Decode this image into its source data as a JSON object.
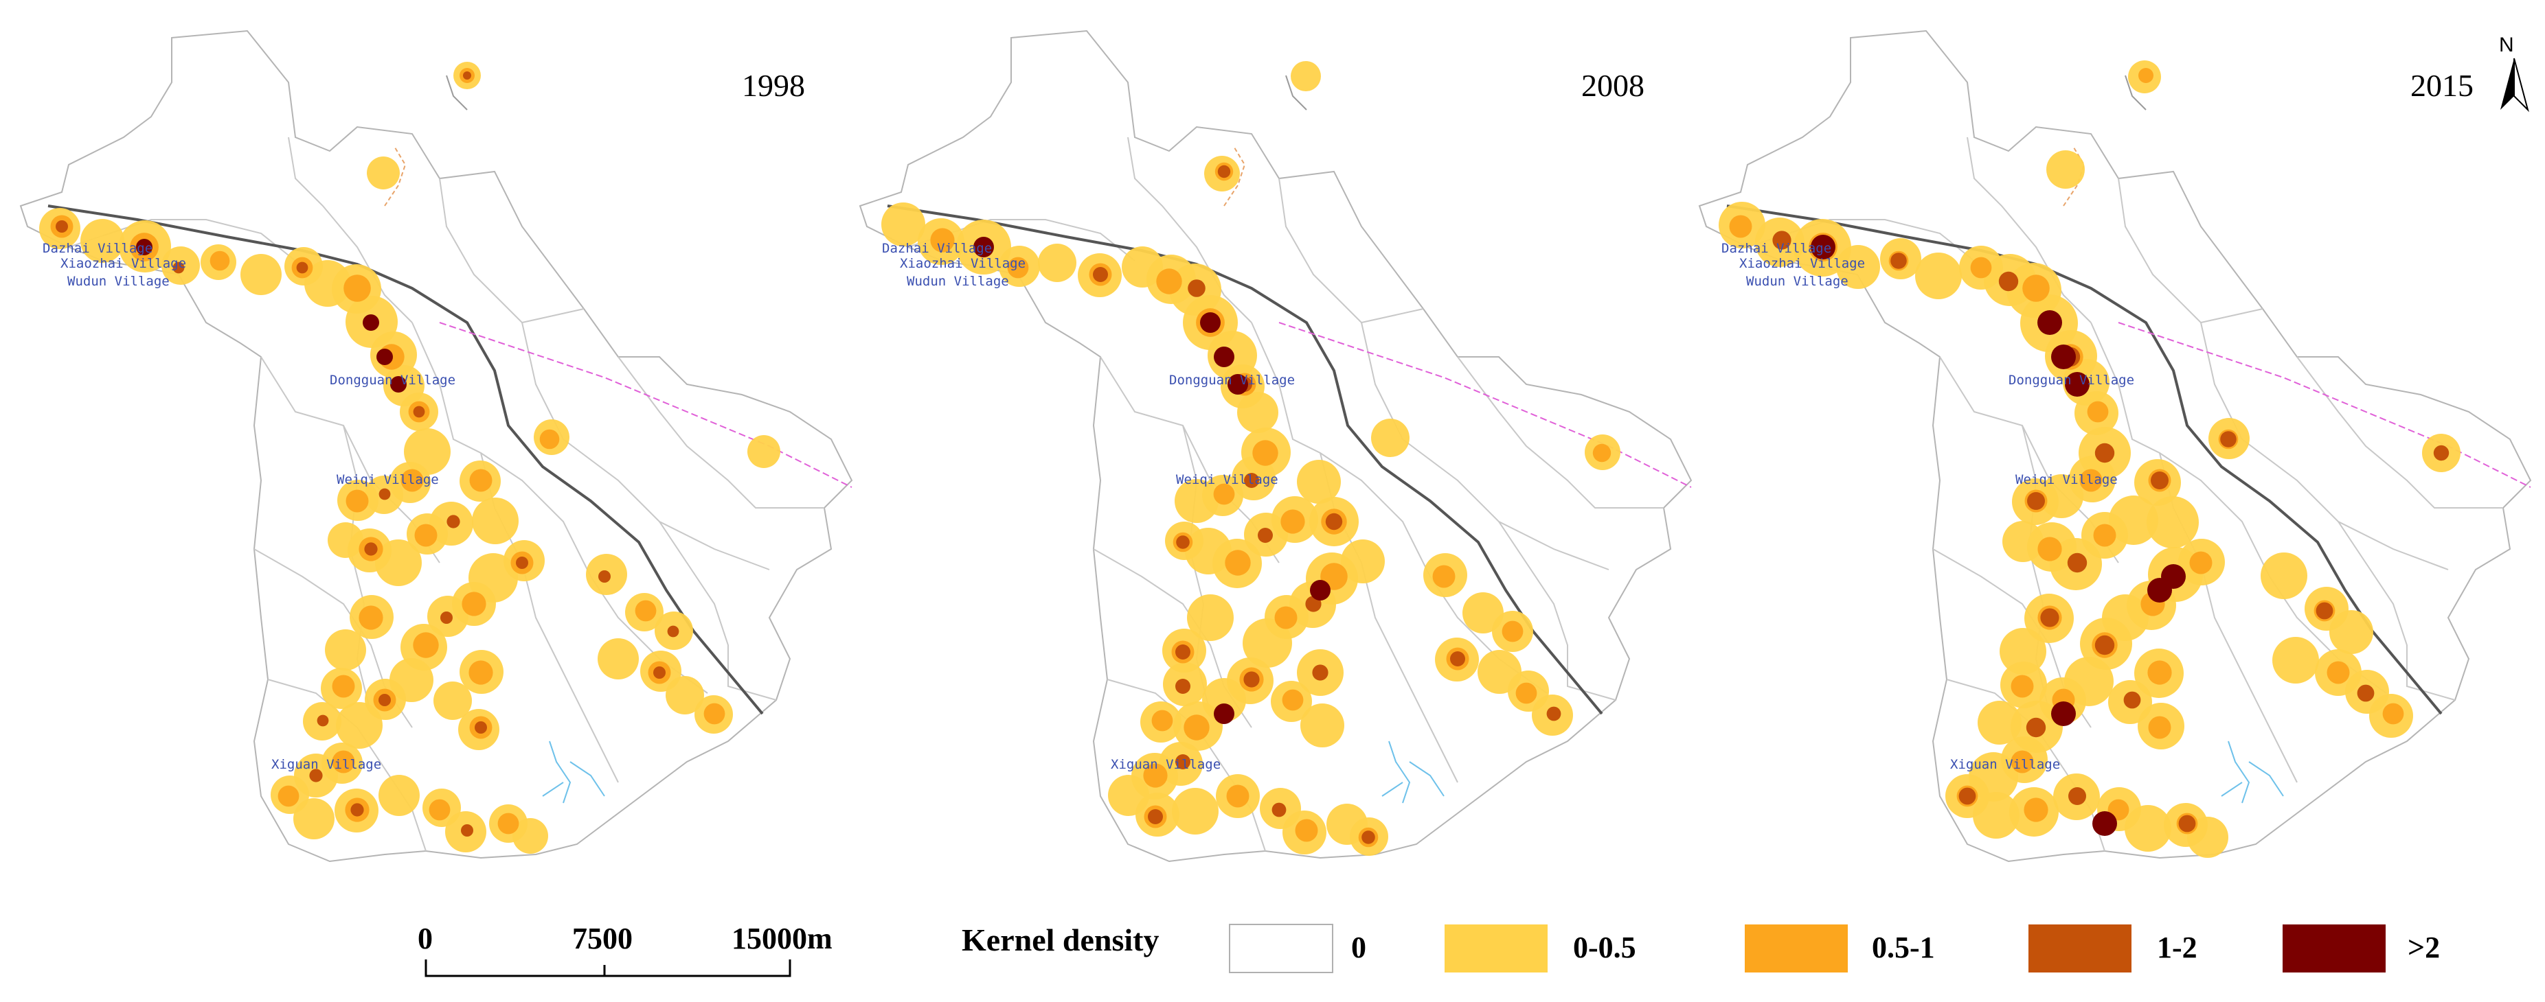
{
  "panels": [
    {
      "year": "1998"
    },
    {
      "year": "2008"
    },
    {
      "year": "2015"
    }
  ],
  "villages": [
    "Dazhai Village",
    "Xiaozhai Village",
    "Wudun Village",
    "Dongguan Village",
    "Weiqi Village",
    "Xiguan Village"
  ],
  "north_arrow": {
    "label": "N"
  },
  "scale_bar": {
    "labels": [
      "0",
      "7500",
      "15000m"
    ]
  },
  "legend": {
    "title": "Kernel density",
    "items": [
      {
        "label": "0",
        "color": "#ffffff"
      },
      {
        "label": "0-0.5",
        "color": "#ffd24a"
      },
      {
        "label": "0.5-1",
        "color": "#fca61e"
      },
      {
        "label": "1-2",
        "color": "#c45209"
      },
      {
        "label": ">2",
        "color": "#7a0000"
      }
    ]
  }
}
